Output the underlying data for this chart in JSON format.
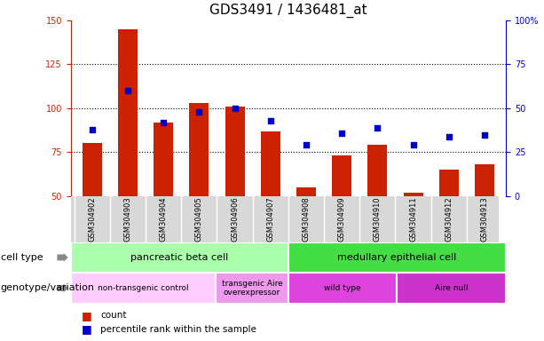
{
  "title": "GDS3491 / 1436481_at",
  "samples": [
    "GSM304902",
    "GSM304903",
    "GSM304904",
    "GSM304905",
    "GSM304906",
    "GSM304907",
    "GSM304908",
    "GSM304909",
    "GSM304910",
    "GSM304911",
    "GSM304912",
    "GSM304913"
  ],
  "counts": [
    80,
    145,
    92,
    103,
    101,
    87,
    55,
    73,
    79,
    52,
    65,
    68
  ],
  "percentiles": [
    88,
    110,
    92,
    98,
    100,
    93,
    79,
    86,
    89,
    79,
    84,
    85
  ],
  "ylim_left": [
    50,
    150
  ],
  "ylim_right": [
    0,
    100
  ],
  "yticks_left": [
    50,
    75,
    100,
    125,
    150
  ],
  "yticks_right": [
    0,
    25,
    50,
    75,
    100
  ],
  "bar_color": "#cc2200",
  "dot_color": "#0000cc",
  "left_axis_color": "#cc2200",
  "right_axis_color": "#0000cc",
  "cell_type_groups": [
    {
      "label": "pancreatic beta cell",
      "start": 0,
      "end": 6,
      "color": "#aaffaa"
    },
    {
      "label": "medullary epithelial cell",
      "start": 6,
      "end": 12,
      "color": "#44dd44"
    }
  ],
  "genotype_groups": [
    {
      "label": "non-transgenic control",
      "start": 0,
      "end": 4,
      "color": "#ffccff"
    },
    {
      "label": "transgenic Aire\noverexpressor",
      "start": 4,
      "end": 6,
      "color": "#ee99ee"
    },
    {
      "label": "wild type",
      "start": 6,
      "end": 9,
      "color": "#dd44dd"
    },
    {
      "label": "Aire null",
      "start": 9,
      "end": 12,
      "color": "#cc33cc"
    }
  ],
  "legend_count_label": "count",
  "legend_pct_label": "percentile rank within the sample",
  "cell_type_row_label": "cell type",
  "genotype_row_label": "genotype/variation",
  "title_fontsize": 11,
  "label_fontsize": 8,
  "tick_fontsize": 7,
  "sample_label_fontsize": 6
}
